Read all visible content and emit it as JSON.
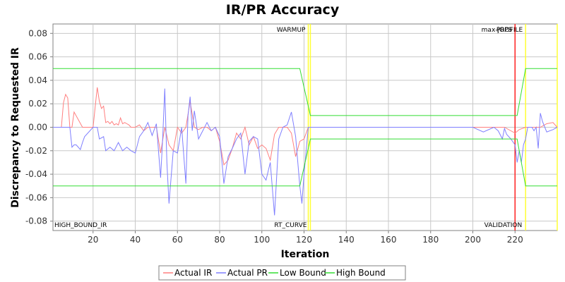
{
  "chart_data": {
    "type": "line",
    "title": "IR/PR Accuracy",
    "xlabel": "Iteration",
    "ylabel": "Discrepancy to Requested IR",
    "xlim": [
      1,
      240
    ],
    "ylim": [
      -0.088,
      0.088
    ],
    "x_ticks": [
      20,
      40,
      60,
      80,
      100,
      120,
      140,
      160,
      180,
      200,
      220
    ],
    "y_ticks": [
      -0.08,
      -0.06,
      -0.04,
      -0.02,
      0.0,
      0.02,
      0.04,
      0.06,
      0.08
    ],
    "y_tick_labels": [
      "-0.08",
      "-0.06",
      "-0.04",
      "-0.02",
      "0.00",
      "0.02",
      "0.04",
      "0.06",
      "0.08"
    ],
    "grid": true,
    "legend_position": "bottom",
    "series": [
      {
        "name": "Actual IR",
        "color": "#ff7f7f",
        "x": [
          1,
          5,
          6,
          7,
          8,
          9,
          10,
          11,
          15,
          20,
          21,
          22,
          23,
          24,
          25,
          26,
          27,
          28,
          29,
          30,
          31,
          32,
          33,
          34,
          35,
          36,
          37,
          38,
          40,
          42,
          44,
          46,
          48,
          50,
          52,
          54,
          56,
          58,
          60,
          62,
          64,
          66,
          68,
          70,
          72,
          74,
          76,
          78,
          80,
          82,
          84,
          86,
          88,
          90,
          92,
          94,
          96,
          98,
          100,
          102,
          104,
          106,
          108,
          110,
          112,
          114,
          116,
          118,
          120,
          122,
          130,
          140,
          150,
          160,
          170,
          180,
          190,
          200,
          210,
          215,
          218,
          220,
          222,
          225,
          228,
          230,
          232,
          235,
          238,
          240
        ],
        "y": [
          0,
          0,
          0.021,
          0.028,
          0.025,
          0,
          0,
          0.013,
          0,
          0,
          0.017,
          0.034,
          0.022,
          0.016,
          0.018,
          0.004,
          0.005,
          0.003,
          0.005,
          0.002,
          0.003,
          0.002,
          0.008,
          0.003,
          0.004,
          0.003,
          0.002,
          0,
          0,
          0.002,
          -0.003,
          0,
          0,
          0,
          -0.022,
          0,
          -0.015,
          -0.02,
          0,
          -0.005,
          0,
          0.022,
          0,
          -0.002,
          0,
          0,
          -0.003,
          0,
          -0.012,
          -0.032,
          -0.028,
          -0.018,
          -0.005,
          -0.01,
          0,
          -0.015,
          -0.008,
          -0.018,
          -0.015,
          -0.018,
          -0.028,
          -0.006,
          0,
          0,
          0,
          -0.005,
          -0.025,
          -0.012,
          -0.01,
          0,
          0,
          0,
          0,
          0,
          0,
          0,
          0,
          0,
          0,
          0,
          -0.003,
          -0.005,
          -0.002,
          0,
          0,
          0,
          0,
          0.003,
          0.004,
          0
        ]
      },
      {
        "name": "Actual PR",
        "color": "#7f7fff",
        "x": [
          1,
          5,
          9,
          10,
          11,
          12,
          14,
          15,
          16,
          20,
          21,
          22,
          23,
          24,
          25,
          26,
          28,
          30,
          32,
          34,
          36,
          38,
          40,
          42,
          44,
          46,
          48,
          50,
          52,
          53,
          54,
          55,
          56,
          58,
          60,
          62,
          64,
          65,
          66,
          67,
          68,
          70,
          72,
          74,
          76,
          78,
          80,
          82,
          84,
          86,
          88,
          90,
          92,
          94,
          96,
          98,
          100,
          102,
          104,
          106,
          108,
          110,
          112,
          114,
          116,
          118,
          119,
          120,
          122,
          130,
          140,
          150,
          160,
          170,
          180,
          190,
          200,
          205,
          210,
          212,
          214,
          215,
          216,
          218,
          220,
          221,
          222,
          223,
          224,
          225,
          226,
          228,
          229,
          230,
          231,
          232,
          233,
          235,
          238,
          240
        ],
        "y": [
          0,
          0,
          0,
          -0.017,
          -0.015,
          -0.015,
          -0.019,
          -0.013,
          -0.008,
          0,
          0,
          0,
          -0.01,
          -0.009,
          -0.008,
          -0.02,
          -0.017,
          -0.02,
          -0.013,
          -0.02,
          -0.017,
          -0.02,
          -0.022,
          -0.008,
          -0.003,
          0.004,
          -0.007,
          0.003,
          -0.043,
          -0.01,
          0.033,
          -0.03,
          -0.065,
          -0.02,
          -0.022,
          0,
          -0.048,
          0.01,
          0.026,
          -0.003,
          0.014,
          -0.01,
          -0.003,
          0.004,
          -0.003,
          0,
          -0.008,
          -0.048,
          -0.025,
          -0.018,
          -0.01,
          -0.005,
          -0.04,
          -0.012,
          -0.008,
          -0.01,
          -0.04,
          -0.045,
          -0.03,
          -0.075,
          -0.01,
          0,
          0.002,
          0.013,
          -0.008,
          -0.05,
          -0.065,
          -0.04,
          0,
          0,
          0,
          0,
          0,
          0,
          0,
          0,
          0,
          -0.004,
          0,
          -0.003,
          -0.01,
          -0.001,
          -0.006,
          -0.01,
          -0.015,
          -0.03,
          -0.02,
          -0.03,
          -0.015,
          -0.01,
          0,
          0,
          -0.003,
          0,
          -0.018,
          0.012,
          0.005,
          -0.004,
          -0.002,
          0
        ]
      },
      {
        "name": "Low Bound",
        "color": "#33dd33",
        "x": [
          1,
          118,
          123,
          221,
          225,
          240
        ],
        "y": [
          -0.05,
          -0.05,
          -0.01,
          -0.01,
          -0.05,
          -0.05
        ]
      },
      {
        "name": "High Bound",
        "color": "#33dd33",
        "x": [
          1,
          118,
          123,
          221,
          225,
          240
        ],
        "y": [
          0.05,
          0.05,
          0.01,
          0.01,
          0.05,
          0.05
        ]
      }
    ],
    "markers": [
      {
        "x": 122,
        "label": "WARMUP",
        "color": "#ffff33"
      },
      {
        "x": 123,
        "label": "",
        "color": "#ffff33"
      },
      {
        "x": 220,
        "label": "max-jOPS",
        "color": "#ff2222"
      },
      {
        "x": 225,
        "label": "PROFILE",
        "color": "#ffff33"
      },
      {
        "x": 240,
        "label": "",
        "color": "#ffff33"
      }
    ],
    "region_labels": [
      {
        "text": "HIGH_BOUND_IR",
        "at": "bottom-left"
      },
      {
        "text": "RT_CURVE",
        "at": "bottom-warmup"
      },
      {
        "text": "VALIDATION",
        "at": "bottom-maxjops"
      }
    ]
  }
}
